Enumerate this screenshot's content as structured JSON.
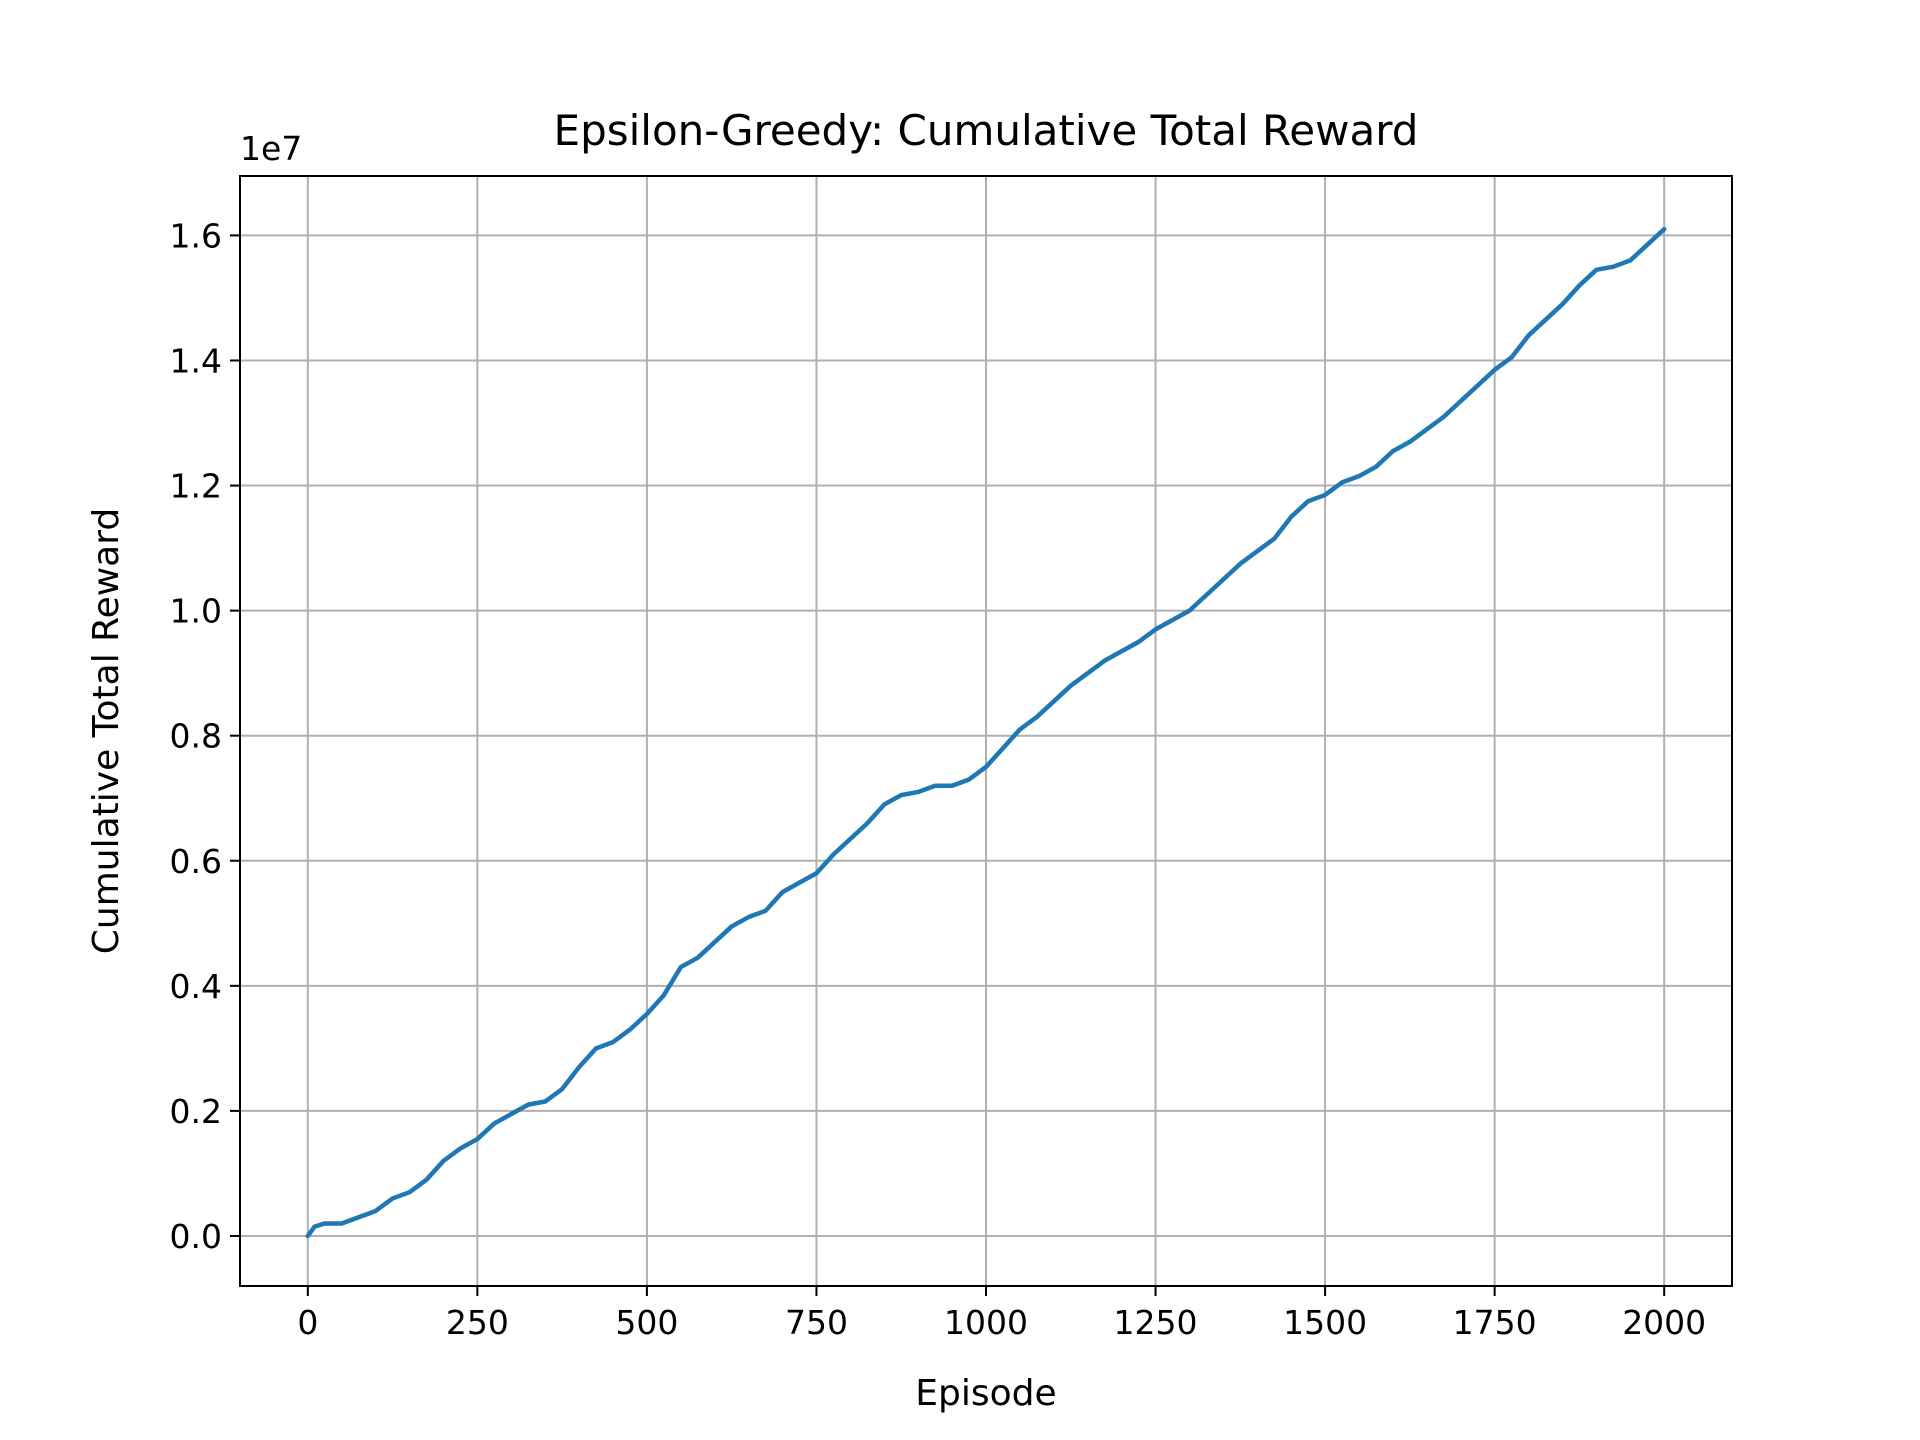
{
  "chart_data": {
    "type": "line",
    "title": "Epsilon-Greedy: Cumulative Total Reward",
    "xlabel": "Episode",
    "ylabel": "Cumulative Total Reward",
    "y_offset_label": "1e7",
    "xlim": [
      -100,
      2100
    ],
    "ylim": [
      -0.08,
      1.695
    ],
    "y_scale_factor": 10000000,
    "grid": true,
    "legend": "none",
    "x_ticks": [
      0,
      250,
      500,
      750,
      1000,
      1250,
      1500,
      1750,
      2000
    ],
    "x_tick_labels": [
      "0",
      "250",
      "500",
      "750",
      "1000",
      "1250",
      "1500",
      "1750",
      "2000"
    ],
    "y_ticks": [
      0.0,
      0.2,
      0.4,
      0.6,
      0.8,
      1.0,
      1.2,
      1.4,
      1.6
    ],
    "y_tick_labels": [
      "0.0",
      "0.2",
      "0.4",
      "0.6",
      "0.8",
      "1.0",
      "1.2",
      "1.4",
      "1.6"
    ],
    "series": [
      {
        "color": "#1f77b4",
        "x": [
          0,
          10,
          25,
          50,
          75,
          100,
          125,
          150,
          175,
          200,
          225,
          250,
          275,
          300,
          325,
          350,
          375,
          400,
          425,
          450,
          475,
          500,
          525,
          550,
          575,
          600,
          625,
          650,
          675,
          700,
          725,
          750,
          775,
          800,
          825,
          850,
          875,
          900,
          925,
          950,
          975,
          1000,
          1025,
          1050,
          1075,
          1100,
          1125,
          1150,
          1175,
          1200,
          1225,
          1250,
          1275,
          1300,
          1325,
          1350,
          1375,
          1400,
          1425,
          1450,
          1475,
          1500,
          1525,
          1550,
          1575,
          1600,
          1625,
          1650,
          1675,
          1700,
          1725,
          1750,
          1775,
          1800,
          1825,
          1850,
          1875,
          1900,
          1925,
          1950,
          1975,
          2000
        ],
        "y": [
          0.0,
          0.015,
          0.02,
          0.02,
          0.03,
          0.04,
          0.06,
          0.07,
          0.09,
          0.12,
          0.14,
          0.155,
          0.18,
          0.195,
          0.21,
          0.215,
          0.235,
          0.27,
          0.3,
          0.31,
          0.33,
          0.355,
          0.385,
          0.43,
          0.445,
          0.47,
          0.495,
          0.51,
          0.52,
          0.55,
          0.565,
          0.58,
          0.61,
          0.635,
          0.66,
          0.69,
          0.705,
          0.71,
          0.72,
          0.72,
          0.73,
          0.75,
          0.78,
          0.81,
          0.83,
          0.855,
          0.88,
          0.9,
          0.92,
          0.935,
          0.95,
          0.97,
          0.985,
          1.0,
          1.025,
          1.05,
          1.075,
          1.095,
          1.115,
          1.15,
          1.175,
          1.185,
          1.205,
          1.215,
          1.23,
          1.255,
          1.27,
          1.29,
          1.31,
          1.335,
          1.36,
          1.385,
          1.405,
          1.44,
          1.465,
          1.49,
          1.52,
          1.545,
          1.55,
          1.56,
          1.585,
          1.61
        ]
      }
    ]
  }
}
